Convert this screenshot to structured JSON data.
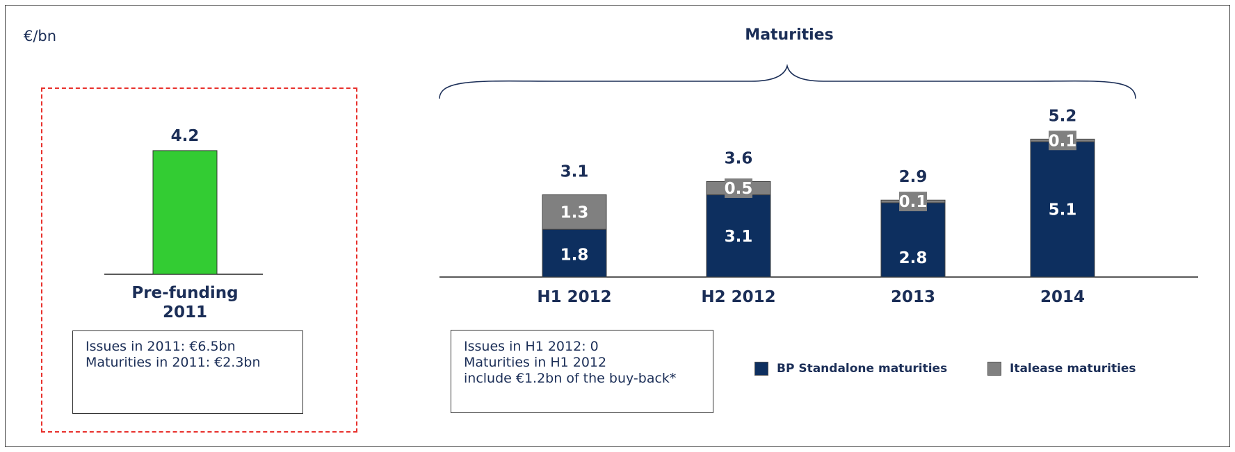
{
  "unit_label": "€/bn",
  "title": "Maturities",
  "colors": {
    "standalone": "#0d2f5f",
    "italease": "#808080",
    "prefunding": "#33cc33",
    "label_dark": "#1b2e57",
    "dashed_border": "#e8302c"
  },
  "notes": {
    "prefunding": [
      "Issues in 2011: €6.5bn",
      "Maturities in 2011: €2.3bn"
    ],
    "maturities": [
      "Issues in H1 2012: 0",
      "Maturities in H1 2012",
      "include €1.2bn of the buy-back*"
    ]
  },
  "legend": {
    "standalone": "BP Standalone maturities",
    "italease": "Italease maturities"
  },
  "chart_data": [
    {
      "type": "bar",
      "categories": [
        "Pre-funding 2011"
      ],
      "category_lines": [
        [
          "Pre-funding",
          "2011"
        ]
      ],
      "values": [
        4.2
      ],
      "value_labels": [
        "4.2"
      ],
      "color": "prefunding"
    },
    {
      "type": "bar",
      "stacked": true,
      "title": "Maturities",
      "categories": [
        "H1 2012",
        "H2 2012",
        "2013",
        "2014"
      ],
      "series": [
        {
          "name": "BP Standalone maturities",
          "color": "standalone",
          "values": [
            1.8,
            3.1,
            2.8,
            5.1
          ],
          "labels": [
            "1.8",
            "3.1",
            "2.8",
            "5.1"
          ]
        },
        {
          "name": "Italease maturities",
          "color": "italease",
          "values": [
            1.3,
            0.5,
            0.1,
            0.1
          ],
          "labels": [
            "1.3",
            "0.5",
            "0.1",
            "0.1"
          ]
        }
      ],
      "totals": [
        3.1,
        3.6,
        2.9,
        5.2
      ],
      "total_labels": [
        "3.1",
        "3.6",
        "2.9",
        "5.2"
      ]
    }
  ]
}
